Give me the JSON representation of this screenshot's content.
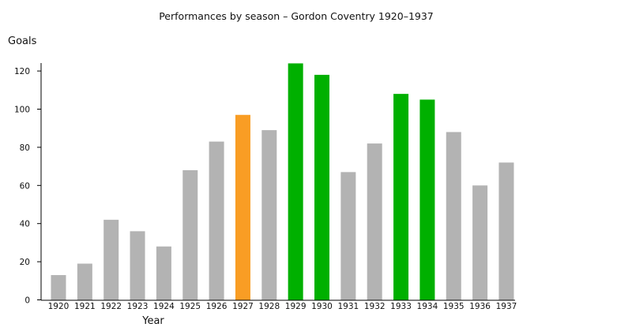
{
  "chart_data": {
    "type": "bar",
    "title": "Performances by season – Gordon Coventry 1920–1937",
    "xlabel": "Year",
    "ylabel": "Goals",
    "ylim": [
      0,
      125
    ],
    "yticks": [
      0,
      20,
      40,
      60,
      80,
      100,
      120
    ],
    "grid": false,
    "categories": [
      "1920",
      "1921",
      "1922",
      "1923",
      "1924",
      "1925",
      "1926",
      "1927",
      "1928",
      "1929",
      "1930",
      "1931",
      "1932",
      "1933",
      "1934",
      "1935",
      "1936",
      "1937"
    ],
    "values": [
      13,
      19,
      42,
      36,
      28,
      68,
      83,
      97,
      89,
      124,
      118,
      67,
      82,
      108,
      105,
      88,
      60,
      72
    ],
    "bar_colors": [
      "#b3b3b3",
      "#b3b3b3",
      "#b3b3b3",
      "#b3b3b3",
      "#b3b3b3",
      "#b3b3b3",
      "#b3b3b3",
      "#f99d24",
      "#b3b3b3",
      "#00b000",
      "#00b000",
      "#b3b3b3",
      "#b3b3b3",
      "#00b000",
      "#00b000",
      "#b3b3b3",
      "#b3b3b3",
      "#b3b3b3"
    ]
  }
}
